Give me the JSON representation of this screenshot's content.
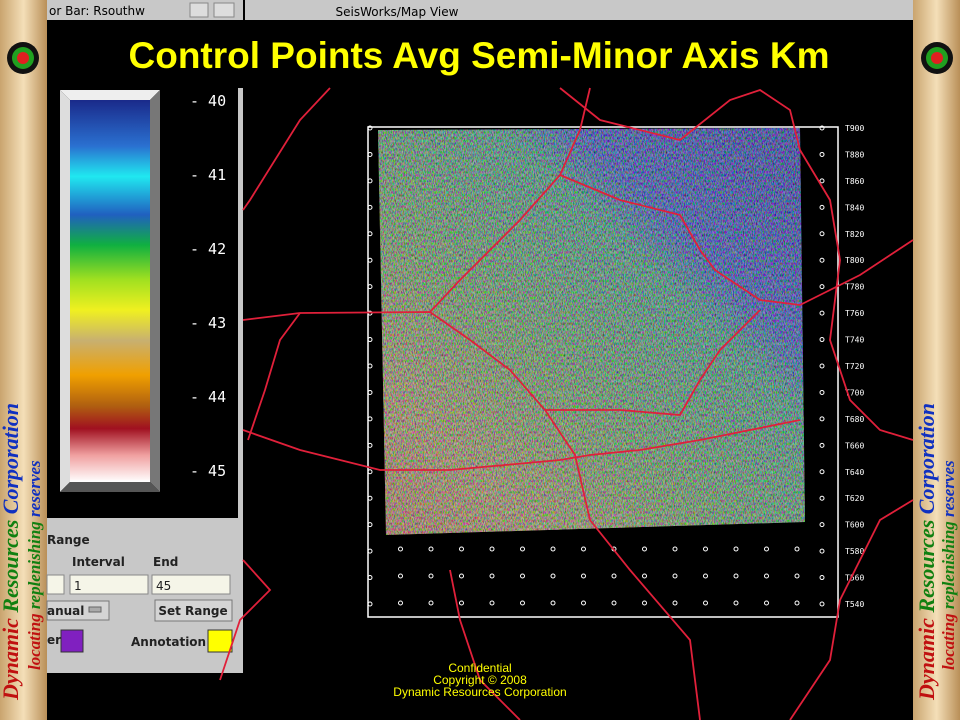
{
  "window": {
    "left_title": "or Bar: Rsouthw",
    "main_title": "SeisWorks/Map View"
  },
  "title": "Control Points Avg Semi-Minor Axis Km",
  "colorbar": {
    "labels": [
      "- 40",
      "- 41",
      "- 42",
      "- 43",
      "- 44",
      "- 45"
    ]
  },
  "panel": {
    "section": "Range",
    "interval_label": "Interval",
    "end_label": "End",
    "interval_value": "1",
    "end_value": "45",
    "mode": "anual",
    "set_range": "Set Range",
    "color_label": "er",
    "annotation": "Annotation"
  },
  "map": {
    "right_labels": [
      "T900",
      "T880",
      "T860",
      "T840",
      "T820",
      "T800",
      "T780",
      "T760",
      "T740",
      "T720",
      "T700",
      "T680",
      "T660",
      "T640",
      "T620",
      "T600",
      "T580",
      "T560",
      "T540"
    ]
  },
  "footer": {
    "confidential": "Confidential",
    "copyright": "Copyright © 2008",
    "company": "Dynamic Resources Corporation"
  },
  "banner": {
    "company": [
      "Dynamic",
      "Resources",
      "Corporation"
    ],
    "tagline": [
      "locating",
      "replenishing",
      "reserves"
    ]
  }
}
